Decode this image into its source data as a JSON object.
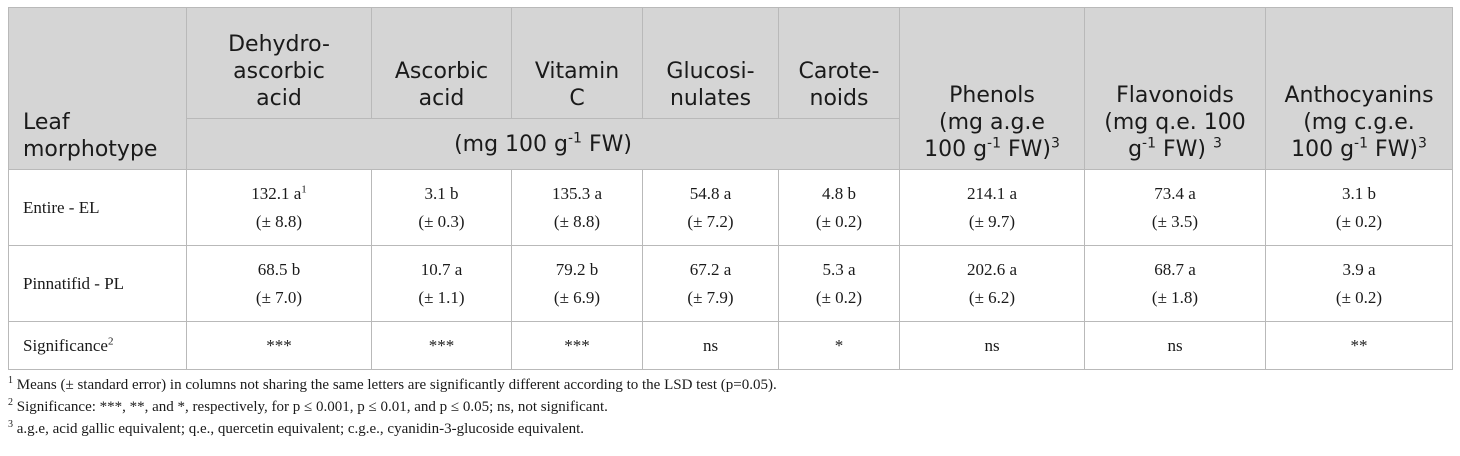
{
  "table": {
    "header": {
      "row_label": "Leaf morphotype",
      "columns": [
        {
          "lines": [
            "Dehydro-",
            "ascorbic",
            "acid"
          ]
        },
        {
          "lines": [
            "Ascorbic",
            "acid"
          ]
        },
        {
          "lines": [
            "Vitamin",
            "C"
          ]
        },
        {
          "lines": [
            "Glucosi-",
            "nulates"
          ]
        },
        {
          "lines": [
            "Carote-",
            "noids"
          ]
        },
        {
          "name": "Phenols",
          "unit_a": "(mg a.g.e",
          "unit_b_pre": "100 g",
          "exp": "-1",
          "unit_b_post": " FW)",
          "note": "3"
        },
        {
          "name": "Flavonoids",
          "unit_a": "(mg q.e. 100",
          "unit_b_pre": "g",
          "exp": "-1",
          "unit_b_post": " FW) ",
          "note": "3"
        },
        {
          "name": "Anthocyanins",
          "unit_a": "(mg c.g.e.",
          "unit_b_pre": "100 g",
          "exp": "-1",
          "unit_b_post": " FW)",
          "note": "3"
        }
      ],
      "shared_unit_pre": "(mg 100 g",
      "shared_unit_exp": "-1",
      "shared_unit_post": " FW)"
    },
    "rows": [
      {
        "label": "Entire - EL",
        "cells": [
          {
            "v": "132.1 a",
            "sup": "1",
            "se": "(± 8.8)"
          },
          {
            "v": "3.1 b",
            "se": "(± 0.3)"
          },
          {
            "v": "135.3 a",
            "se": "(± 8.8)"
          },
          {
            "v": "54.8 a",
            "se": "(± 7.2)"
          },
          {
            "v": "4.8 b",
            "se": "(± 0.2)"
          },
          {
            "v": "214.1 a",
            "se": "(± 9.7)"
          },
          {
            "v": "73.4 a",
            "se": "(± 3.5)"
          },
          {
            "v": "3.1 b",
            "se": "(± 0.2)"
          }
        ]
      },
      {
        "label": "Pinnatifid - PL",
        "cells": [
          {
            "v": "68.5 b",
            "se": "(± 7.0)"
          },
          {
            "v": "10.7 a",
            "se": "(± 1.1)"
          },
          {
            "v": "79.2 b",
            "se": "(± 6.9)"
          },
          {
            "v": "67.2 a",
            "se": "(± 7.9)"
          },
          {
            "v": "5.3 a",
            "se": "(± 0.2)"
          },
          {
            "v": "202.6 a",
            "se": "(± 6.2)"
          },
          {
            "v": "68.7 a",
            "se": "(± 1.8)"
          },
          {
            "v": "3.9 a",
            "se": "(± 0.2)"
          }
        ]
      }
    ],
    "significance": {
      "label": "Significance",
      "label_sup": "2",
      "values": [
        "***",
        "***",
        "***",
        "ns",
        "*",
        "ns",
        "ns",
        "**"
      ]
    }
  },
  "footnotes": [
    {
      "mark": "1",
      "text": " Means (± standard error) in columns not sharing the same letters are significantly different according to the LSD test (p=0.05)."
    },
    {
      "mark": "2",
      "text": " Significance: ***, **, and *, respectively, for p ≤ 0.001, p ≤ 0.01, and p ≤ 0.05; ns, not significant."
    },
    {
      "mark": "3",
      "text": " a.g.e, acid gallic equivalent; q.e., quercetin equivalent; c.g.e., cyanidin-3-glucoside equivalent."
    }
  ]
}
